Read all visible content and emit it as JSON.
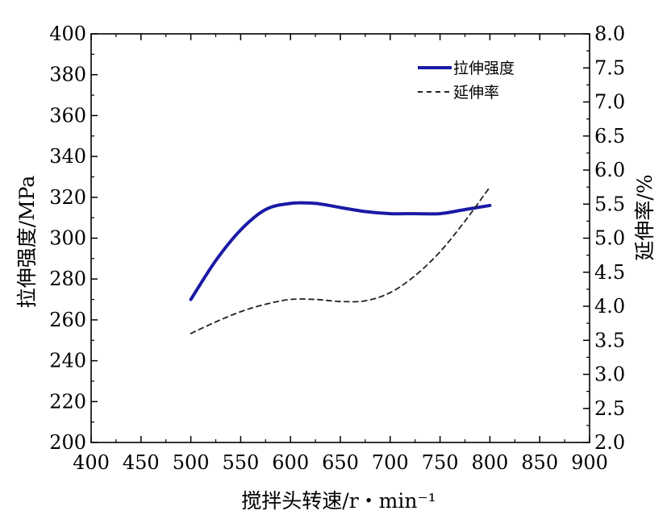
{
  "chart_data": {
    "type": "line",
    "x": [
      500,
      550,
      600,
      650,
      700,
      750,
      800
    ],
    "xlabel": "搅拌头转速/r・min⁻¹",
    "xlim": [
      400,
      900
    ],
    "xticks": [
      400,
      450,
      500,
      550,
      600,
      650,
      700,
      750,
      800,
      850,
      900
    ],
    "ylabel_left": "拉伸强度/MPa",
    "ylim_left": [
      200,
      400
    ],
    "yticks_left": [
      200,
      220,
      240,
      260,
      280,
      300,
      320,
      340,
      360,
      380,
      400
    ],
    "ylabel_right": "延伸率/%",
    "ylim_right": [
      2.0,
      8.0
    ],
    "yticks_right": [
      "2.0",
      "2.5",
      "3.0",
      "3.5",
      "4.0",
      "4.5",
      "5.0",
      "5.5",
      "6.0",
      "6.5",
      "7.0",
      "7.5",
      "8.0"
    ],
    "legend_position": "top-right",
    "series": [
      {
        "name": "拉伸强度",
        "axis": "left",
        "style": "solid",
        "color": "#1a1aa6",
        "x": [
          500,
          525,
          550,
          575,
          600,
          625,
          650,
          675,
          700,
          725,
          750,
          775,
          800
        ],
        "values": [
          270,
          289,
          304,
          314,
          317,
          317,
          315,
          313,
          312,
          312,
          312,
          314,
          316
        ]
      },
      {
        "name": "延伸率",
        "axis": "right",
        "style": "dashed",
        "color": "#222222",
        "x": [
          500,
          525,
          550,
          575,
          600,
          625,
          650,
          675,
          700,
          725,
          750,
          775,
          800
        ],
        "values": [
          3.6,
          3.77,
          3.92,
          4.03,
          4.1,
          4.1,
          4.07,
          4.08,
          4.2,
          4.45,
          4.8,
          5.25,
          5.75
        ]
      }
    ]
  }
}
